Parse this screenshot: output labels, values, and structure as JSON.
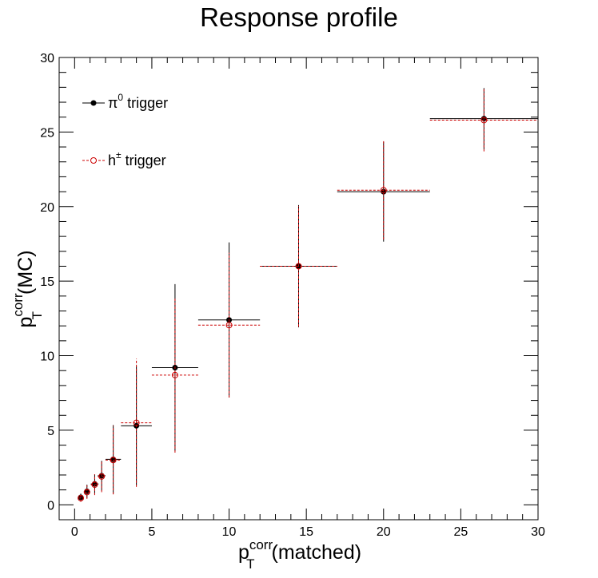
{
  "chart_data": {
    "type": "scatter",
    "title": "Response profile",
    "xlabel": {
      "base": "p",
      "sub": "T",
      "sup": "corr",
      "suffix": "(matched)"
    },
    "ylabel": {
      "base": "p",
      "sub": "T",
      "sup": "corr",
      "suffix": "(MC)"
    },
    "xlim": [
      -1,
      30
    ],
    "ylim": [
      -1,
      30
    ],
    "xticks": [
      0,
      5,
      10,
      15,
      20,
      25,
      30
    ],
    "yticks": [
      0,
      5,
      10,
      15,
      20,
      25,
      30
    ],
    "legend_position": "top-left",
    "series": [
      {
        "name": "π⁰ trigger",
        "name_base": "π",
        "name_sup": "0",
        "name_suffix": " trigger",
        "color": "#000000",
        "marker": "filled-circle",
        "line": "solid",
        "points": [
          {
            "x": 0.4,
            "y": 0.5,
            "xerr": 0.15,
            "yerr": 0.25
          },
          {
            "x": 0.8,
            "y": 0.9,
            "xerr": 0.2,
            "yerr": 0.45
          },
          {
            "x": 1.3,
            "y": 1.4,
            "xerr": 0.25,
            "yerr": 0.65
          },
          {
            "x": 1.75,
            "y": 1.95,
            "xerr": 0.25,
            "yerr": 1.0
          },
          {
            "x": 2.5,
            "y": 3.05,
            "xerr": 0.5,
            "yerr": 2.3
          },
          {
            "x": 4.0,
            "y": 5.3,
            "xerr": 1.0,
            "yerr": 4.0
          },
          {
            "x": 6.5,
            "y": 9.2,
            "xerr": 1.5,
            "yerr": 5.6
          },
          {
            "x": 10.0,
            "y": 12.4,
            "xerr": 2.0,
            "yerr": 5.2
          },
          {
            "x": 14.5,
            "y": 16.0,
            "xerr": 2.5,
            "yerr": 4.1
          },
          {
            "x": 20.0,
            "y": 21.0,
            "xerr": 3.0,
            "yerr": 3.35
          },
          {
            "x": 26.5,
            "y": 25.9,
            "xerr": 3.5,
            "yerr": 2.05
          }
        ]
      },
      {
        "name": "h± trigger",
        "name_base": "h",
        "name_sup": "±",
        "name_suffix": " trigger",
        "color": "#cc0000",
        "marker": "open-circle",
        "line": "dashed",
        "points": [
          {
            "x": 0.4,
            "y": 0.45,
            "xerr": 0.15,
            "yerr": 0.25
          },
          {
            "x": 0.8,
            "y": 0.85,
            "xerr": 0.2,
            "yerr": 0.45
          },
          {
            "x": 1.3,
            "y": 1.35,
            "xerr": 0.25,
            "yerr": 0.7
          },
          {
            "x": 1.75,
            "y": 1.9,
            "xerr": 0.25,
            "yerr": 1.05
          },
          {
            "x": 2.5,
            "y": 3.0,
            "xerr": 0.5,
            "yerr": 2.3
          },
          {
            "x": 4.0,
            "y": 5.5,
            "xerr": 1.0,
            "yerr": 4.3
          },
          {
            "x": 6.5,
            "y": 8.7,
            "xerr": 1.5,
            "yerr": 5.2
          },
          {
            "x": 10.0,
            "y": 12.05,
            "xerr": 2.0,
            "yerr": 4.85
          },
          {
            "x": 14.5,
            "y": 16.0,
            "xerr": 2.5,
            "yerr": 4.05
          },
          {
            "x": 20.0,
            "y": 21.1,
            "xerr": 3.0,
            "yerr": 3.3
          },
          {
            "x": 26.5,
            "y": 25.8,
            "xerr": 3.5,
            "yerr": 2.1
          }
        ]
      }
    ]
  }
}
